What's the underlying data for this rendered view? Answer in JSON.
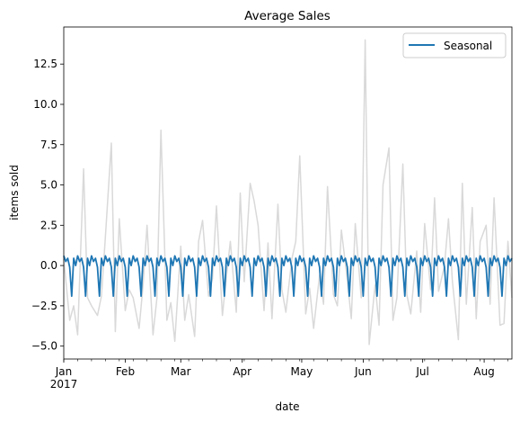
{
  "chart_data": {
    "type": "line",
    "title": "Average Sales",
    "xlabel": "date",
    "ylabel": "items sold",
    "x_start": "2017-01-01",
    "x_end": "2017-08-15",
    "ylim": [
      -5.8,
      14.8
    ],
    "y_ticks": [
      -5.0,
      -2.5,
      0.0,
      2.5,
      5.0,
      7.5,
      10.0,
      12.5
    ],
    "y_tick_labels": [
      "−5.0",
      "−2.5",
      "0.0",
      "2.5",
      "5.0",
      "7.5",
      "10.0",
      "12.5"
    ],
    "x_ticks": [
      {
        "date": "2017-01-01",
        "label": "Jan",
        "sublabel": "2017"
      },
      {
        "date": "2017-02-01",
        "label": "Feb"
      },
      {
        "date": "2017-03-01",
        "label": "Mar"
      },
      {
        "date": "2017-04-01",
        "label": "Apr"
      },
      {
        "date": "2017-05-01",
        "label": "May"
      },
      {
        "date": "2017-06-01",
        "label": "Jun"
      },
      {
        "date": "2017-07-01",
        "label": "Jul"
      },
      {
        "date": "2017-08-01",
        "label": "Aug"
      }
    ],
    "grid": false,
    "legend_position": "top-right",
    "series": [
      {
        "name": "",
        "color": "#d9d9d9",
        "kind": "observed",
        "x": [
          "2017-01-01",
          "2017-01-04",
          "2017-01-06",
          "2017-01-08",
          "2017-01-11",
          "2017-01-13",
          "2017-01-15",
          "2017-01-18",
          "2017-01-20",
          "2017-01-22",
          "2017-01-25",
          "2017-01-27",
          "2017-01-29",
          "2017-02-01",
          "2017-02-03",
          "2017-02-05",
          "2017-02-08",
          "2017-02-10",
          "2017-02-12",
          "2017-02-15",
          "2017-02-17",
          "2017-02-19",
          "2017-02-22",
          "2017-02-24",
          "2017-02-26",
          "2017-03-01",
          "2017-03-03",
          "2017-03-05",
          "2017-03-08",
          "2017-03-10",
          "2017-03-12",
          "2017-03-15",
          "2017-03-17",
          "2017-03-19",
          "2017-03-22",
          "2017-03-24",
          "2017-03-26",
          "2017-03-29",
          "2017-03-31",
          "2017-04-02",
          "2017-04-05",
          "2017-04-07",
          "2017-04-09",
          "2017-04-12",
          "2017-04-14",
          "2017-04-16",
          "2017-04-19",
          "2017-04-21",
          "2017-04-23",
          "2017-04-26",
          "2017-04-28",
          "2017-04-30",
          "2017-05-03",
          "2017-05-05",
          "2017-05-07",
          "2017-05-10",
          "2017-05-12",
          "2017-05-14",
          "2017-05-17",
          "2017-05-19",
          "2017-05-21",
          "2017-05-24",
          "2017-05-26",
          "2017-05-28",
          "2017-05-31",
          "2017-06-02",
          "2017-06-04",
          "2017-06-07",
          "2017-06-09",
          "2017-06-11",
          "2017-06-14",
          "2017-06-16",
          "2017-06-18",
          "2017-06-21",
          "2017-06-23",
          "2017-06-25",
          "2017-06-28",
          "2017-06-30",
          "2017-07-02",
          "2017-07-05",
          "2017-07-07",
          "2017-07-09",
          "2017-07-12",
          "2017-07-14",
          "2017-07-16",
          "2017-07-19",
          "2017-07-21",
          "2017-07-23",
          "2017-07-26",
          "2017-07-28",
          "2017-07-30",
          "2017-08-02",
          "2017-08-04",
          "2017-08-06",
          "2017-08-09",
          "2017-08-11",
          "2017-08-13",
          "2017-08-15"
        ],
        "values": [
          0.4,
          -3.4,
          -2.5,
          -4.3,
          6.0,
          -2.0,
          -2.5,
          -3.1,
          -1.9,
          1.8,
          7.6,
          -4.1,
          2.9,
          -2.8,
          -1.5,
          -2.0,
          -3.9,
          -1.2,
          2.5,
          -4.3,
          -2.0,
          8.4,
          -3.4,
          -2.3,
          -4.7,
          1.2,
          -3.4,
          -1.8,
          -4.4,
          1.5,
          2.8,
          -1.9,
          -0.8,
          3.7,
          -3.1,
          -0.7,
          1.5,
          -2.9,
          4.5,
          -1.0,
          5.1,
          4.0,
          2.5,
          -2.8,
          1.4,
          -3.3,
          3.8,
          -1.5,
          -2.9,
          0.4,
          1.5,
          6.8,
          -3.0,
          -1.4,
          -3.9,
          -0.6,
          -2.4,
          4.9,
          -1.8,
          -2.5,
          2.2,
          -0.9,
          -3.3,
          2.6,
          -2.0,
          14.0,
          -4.9,
          -1.2,
          -3.7,
          5.0,
          7.3,
          -3.4,
          -2.0,
          6.3,
          -1.8,
          -3.0,
          0.9,
          -2.9,
          2.6,
          -1.5,
          4.2,
          -1.6,
          0.0,
          2.9,
          -1.0,
          -4.6,
          5.1,
          -2.4,
          3.6,
          -3.3,
          1.5,
          2.5,
          -2.4,
          4.2,
          -3.7,
          -3.6,
          1.5,
          -2.0
        ]
      },
      {
        "name": "Seasonal",
        "color": "#1f77b4",
        "kind": "seasonal",
        "period_days": 7,
        "weekly_pattern": [
          0.6,
          0.25,
          0.45,
          -0.1,
          -1.9,
          0.45,
          0.0
        ]
      }
    ]
  }
}
